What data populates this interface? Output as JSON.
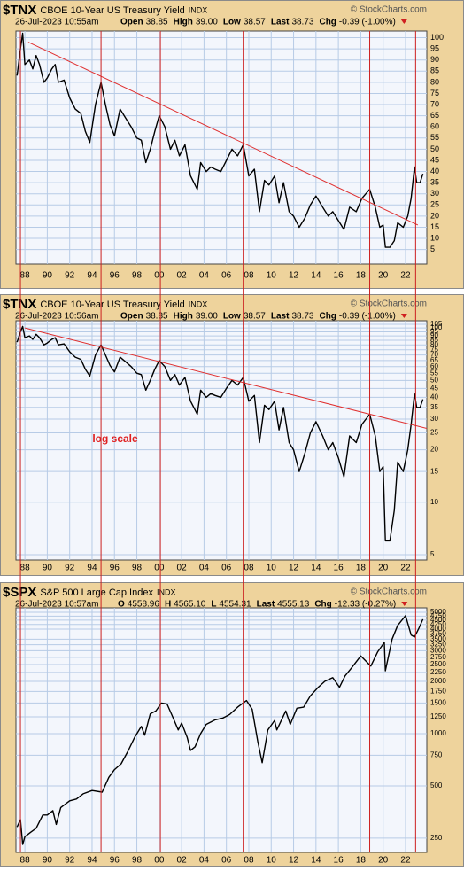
{
  "chart_data": [
    {
      "type": "line",
      "title": "$TNX",
      "subtitle": "CBOE 10-Year US Treasury Yield",
      "exchange": "INDX",
      "date": "26-Jul-2023 10:55am",
      "quote": [
        {
          "label": "Open",
          "value": "38.85"
        },
        {
          "label": "High",
          "value": "39.00"
        },
        {
          "label": "Low",
          "value": "38.57"
        },
        {
          "label": "Last",
          "value": "38.73"
        },
        {
          "label": "Chg",
          "value": "-0.39 (-1.00%)"
        }
      ],
      "watermark": "© StockCharts.com",
      "log_scale": false,
      "grid": true,
      "xlim": [
        1987.2,
        2023.9
      ],
      "ylim": [
        -1.5,
        103
      ],
      "xticks": [
        {
          "value": 1988,
          "label": "88"
        },
        {
          "value": 1990,
          "label": "90"
        },
        {
          "value": 1992,
          "label": "92"
        },
        {
          "value": 1994,
          "label": "94"
        },
        {
          "value": 1996,
          "label": "96"
        },
        {
          "value": 1998,
          "label": "98"
        },
        {
          "value": 2000,
          "label": "00"
        },
        {
          "value": 2002,
          "label": "02"
        },
        {
          "value": 2004,
          "label": "04"
        },
        {
          "value": 2006,
          "label": "06"
        },
        {
          "value": 2008,
          "label": "08"
        },
        {
          "value": 2010,
          "label": "10"
        },
        {
          "value": 2012,
          "label": "12"
        },
        {
          "value": 2014,
          "label": "14"
        },
        {
          "value": 2016,
          "label": "16"
        },
        {
          "value": 2018,
          "label": "18"
        },
        {
          "value": 2020,
          "label": "20"
        },
        {
          "value": 2022,
          "label": "22"
        }
      ],
      "yticks": [
        5,
        10,
        15,
        20,
        25,
        30,
        35,
        40,
        45,
        50,
        55,
        60,
        65,
        70,
        75,
        80,
        85,
        90,
        95,
        100
      ],
      "series": [
        {
          "color": "#000000",
          "x": [
            1987.3,
            1987.6,
            1987.8,
            1988.0,
            1988.4,
            1988.7,
            1989.0,
            1989.3,
            1989.7,
            1990.0,
            1990.4,
            1990.7,
            1991.0,
            1991.5,
            1992.0,
            1992.5,
            1993.0,
            1993.4,
            1993.8,
            1994.3,
            1994.8,
            1995.2,
            1995.6,
            1996.0,
            1996.5,
            1997.0,
            1997.5,
            1998.0,
            1998.4,
            1998.8,
            1999.2,
            1999.6,
            2000.0,
            2000.5,
            2001.0,
            2001.4,
            2001.8,
            2002.3,
            2002.8,
            2003.4,
            2003.7,
            2004.2,
            2004.6,
            2005.0,
            2005.5,
            2006.0,
            2006.5,
            2007.0,
            2007.5,
            2008.0,
            2008.5,
            2008.95,
            2009.4,
            2009.8,
            2010.3,
            2010.7,
            2011.1,
            2011.6,
            2012.0,
            2012.5,
            2013.0,
            2013.5,
            2014.0,
            2014.6,
            2015.1,
            2015.5,
            2016.0,
            2016.5,
            2017.0,
            2017.6,
            2018.1,
            2018.8,
            2019.3,
            2019.7,
            2020.0,
            2020.2,
            2020.6,
            2021.0,
            2021.3,
            2021.8,
            2022.2,
            2022.5,
            2022.8,
            2023.0,
            2023.3,
            2023.55
          ],
          "values": [
            83,
            95,
            102,
            88,
            90,
            86,
            92,
            88,
            80,
            82,
            86,
            88,
            80,
            81,
            73,
            68,
            66,
            58,
            53,
            70,
            80,
            70,
            61,
            56,
            68,
            64,
            60,
            55,
            54,
            44,
            50,
            58,
            65,
            60,
            50,
            54,
            47,
            52,
            38,
            32,
            44,
            40,
            42,
            41,
            40,
            45,
            50,
            47,
            52,
            38,
            41,
            22,
            36,
            34,
            38,
            26,
            35,
            22,
            20,
            15,
            19,
            25,
            29,
            24,
            20,
            22,
            18,
            14,
            24,
            22,
            28,
            32,
            24,
            15,
            16,
            6,
            6,
            9,
            17,
            15,
            20,
            28,
            42,
            35,
            35,
            39
          ]
        }
      ],
      "trendline": {
        "x": [
          1988.3,
          2023.1
        ],
        "y": [
          98,
          16
        ]
      }
    },
    {
      "type": "line",
      "title": "$TNX",
      "subtitle": "CBOE 10-Year US Treasury Yield",
      "exchange": "INDX",
      "date": "26-Jul-2023 10:56am",
      "quote": [
        {
          "label": "Open",
          "value": "38.85"
        },
        {
          "label": "High",
          "value": "39.00"
        },
        {
          "label": "Low",
          "value": "38.57"
        },
        {
          "label": "Last",
          "value": "38.73"
        },
        {
          "label": "Chg",
          "value": "-0.39 (-1.00%)"
        }
      ],
      "watermark": "© StockCharts.com",
      "log_scale": true,
      "grid": true,
      "annotation": "log scale",
      "xlim": [
        1987.2,
        2023.9
      ],
      "ylim": [
        4.66,
        110
      ],
      "xticks": [
        {
          "value": 1988,
          "label": "88"
        },
        {
          "value": 1990,
          "label": "90"
        },
        {
          "value": 1992,
          "label": "92"
        },
        {
          "value": 1994,
          "label": "94"
        },
        {
          "value": 1996,
          "label": "96"
        },
        {
          "value": 1998,
          "label": "98"
        },
        {
          "value": 2000,
          "label": "00"
        },
        {
          "value": 2002,
          "label": "02"
        },
        {
          "value": 2004,
          "label": "04"
        },
        {
          "value": 2006,
          "label": "06"
        },
        {
          "value": 2008,
          "label": "08"
        },
        {
          "value": 2010,
          "label": "10"
        },
        {
          "value": 2012,
          "label": "12"
        },
        {
          "value": 2014,
          "label": "14"
        },
        {
          "value": 2016,
          "label": "16"
        },
        {
          "value": 2018,
          "label": "18"
        },
        {
          "value": 2020,
          "label": "20"
        },
        {
          "value": 2022,
          "label": "22"
        }
      ],
      "yticks": [
        5,
        10,
        15,
        20,
        25,
        30,
        35,
        40,
        45,
        50,
        55,
        60,
        65,
        70,
        75,
        80,
        85,
        90,
        95,
        100,
        105
      ],
      "series": [
        {
          "color": "#000000",
          "x": [
            1987.3,
            1987.6,
            1987.8,
            1988.0,
            1988.4,
            1988.7,
            1989.0,
            1989.3,
            1989.7,
            1990.0,
            1990.4,
            1990.7,
            1991.0,
            1991.5,
            1992.0,
            1992.5,
            1993.0,
            1993.4,
            1993.8,
            1994.3,
            1994.8,
            1995.2,
            1995.6,
            1996.0,
            1996.5,
            1997.0,
            1997.5,
            1998.0,
            1998.4,
            1998.8,
            1999.2,
            1999.6,
            2000.0,
            2000.5,
            2001.0,
            2001.4,
            2001.8,
            2002.3,
            2002.8,
            2003.4,
            2003.7,
            2004.2,
            2004.6,
            2005.0,
            2005.5,
            2006.0,
            2006.5,
            2007.0,
            2007.5,
            2008.0,
            2008.5,
            2008.95,
            2009.4,
            2009.8,
            2010.3,
            2010.7,
            2011.1,
            2011.6,
            2012.0,
            2012.5,
            2013.0,
            2013.5,
            2014.0,
            2014.6,
            2015.1,
            2015.5,
            2016.0,
            2016.5,
            2017.0,
            2017.6,
            2018.1,
            2018.8,
            2019.3,
            2019.7,
            2020.0,
            2020.2,
            2020.6,
            2021.0,
            2021.3,
            2021.8,
            2022.2,
            2022.5,
            2022.8,
            2023.0,
            2023.3,
            2023.55
          ],
          "values": [
            83,
            95,
            102,
            88,
            90,
            86,
            92,
            88,
            80,
            82,
            86,
            88,
            80,
            81,
            73,
            68,
            66,
            58,
            53,
            70,
            80,
            70,
            61,
            56,
            68,
            64,
            60,
            55,
            54,
            44,
            50,
            58,
            65,
            60,
            50,
            54,
            47,
            52,
            38,
            32,
            44,
            40,
            42,
            41,
            40,
            45,
            50,
            47,
            52,
            38,
            41,
            22,
            36,
            34,
            38,
            26,
            35,
            22,
            20,
            15,
            19,
            25,
            29,
            24,
            20,
            22,
            18,
            14,
            24,
            22,
            28,
            32,
            24,
            15,
            16,
            6,
            6,
            9,
            17,
            15,
            20,
            28,
            42,
            35,
            35,
            39
          ]
        }
      ],
      "trendline": {
        "x": [
          1988.0,
          2023.9
        ],
        "y": [
          100,
          26.5
        ]
      }
    },
    {
      "type": "line",
      "title": "$SPX",
      "subtitle": "S&P 500 Large Cap Index",
      "exchange": "INDX",
      "date": "26-Jul-2023 10:57am",
      "quote": [
        {
          "label": "O",
          "value": "4558.96"
        },
        {
          "label": "H",
          "value": "4565.10"
        },
        {
          "label": "L",
          "value": "4554.31"
        },
        {
          "label": "Last",
          "value": "4555.13"
        },
        {
          "label": "Chg",
          "value": "-12.33 (-0.27%)"
        }
      ],
      "watermark": "© StockCharts.com",
      "log_scale": true,
      "grid": true,
      "xlim": [
        1987.2,
        2023.9
      ],
      "ylim": [
        207,
        5300
      ],
      "xticks": [
        {
          "value": 1988,
          "label": "88"
        },
        {
          "value": 1990,
          "label": "90"
        },
        {
          "value": 1992,
          "label": "92"
        },
        {
          "value": 1994,
          "label": "94"
        },
        {
          "value": 1996,
          "label": "96"
        },
        {
          "value": 1998,
          "label": "98"
        },
        {
          "value": 2000,
          "label": "00"
        },
        {
          "value": 2002,
          "label": "02"
        },
        {
          "value": 2004,
          "label": "04"
        },
        {
          "value": 2006,
          "label": "06"
        },
        {
          "value": 2008,
          "label": "08"
        },
        {
          "value": 2010,
          "label": "10"
        },
        {
          "value": 2012,
          "label": "12"
        },
        {
          "value": 2014,
          "label": "14"
        },
        {
          "value": 2016,
          "label": "16"
        },
        {
          "value": 2018,
          "label": "18"
        },
        {
          "value": 2020,
          "label": "20"
        },
        {
          "value": 2022,
          "label": "22"
        }
      ],
      "yticks": [
        250,
        500,
        750,
        1000,
        1250,
        1500,
        1750,
        2000,
        2250,
        2500,
        2750,
        3000,
        3250,
        3500,
        3750,
        4000,
        4250,
        4500,
        4750,
        5000
      ],
      "series": [
        {
          "color": "#000000",
          "x": [
            1987.3,
            1987.6,
            1987.8,
            1988.0,
            1988.5,
            1989.0,
            1989.6,
            1990.0,
            1990.5,
            1990.8,
            1991.2,
            1992.0,
            1992.6,
            1993.2,
            1994.0,
            1994.9,
            1995.5,
            1996.0,
            1996.6,
            1997.2,
            1997.8,
            1998.4,
            1998.7,
            1999.2,
            1999.7,
            2000.2,
            2000.7,
            2001.2,
            2001.7,
            2002.0,
            2002.5,
            2002.8,
            2003.2,
            2003.7,
            2004.2,
            2005.0,
            2005.7,
            2006.3,
            2007.0,
            2007.8,
            2008.3,
            2008.8,
            2009.2,
            2009.7,
            2010.3,
            2010.5,
            2011.3,
            2011.7,
            2012.3,
            2012.9,
            2013.5,
            2014.2,
            2014.8,
            2015.5,
            2016.1,
            2016.6,
            2017.2,
            2018.0,
            2018.9,
            2019.5,
            2020.1,
            2020.2,
            2020.8,
            2021.3,
            2022.0,
            2022.5,
            2022.8,
            2023.2,
            2023.55
          ],
          "values": [
            290,
            320,
            230,
            255,
            270,
            285,
            340,
            340,
            360,
            300,
            375,
            410,
            420,
            450,
            470,
            460,
            560,
            620,
            670,
            790,
            950,
            1100,
            980,
            1300,
            1350,
            1500,
            1480,
            1250,
            1050,
            1150,
            950,
            800,
            840,
            1000,
            1130,
            1200,
            1230,
            1290,
            1420,
            1550,
            1380,
            900,
            680,
            1050,
            1190,
            1050,
            1350,
            1130,
            1400,
            1420,
            1650,
            1850,
            2000,
            2100,
            1850,
            2150,
            2400,
            2800,
            2450,
            2950,
            3350,
            2300,
            3500,
            4200,
            4780,
            3700,
            3600,
            4050,
            4555
          ]
        }
      ]
    }
  ],
  "marker_lines_x": [
    1987.6,
    1994.8,
    2000.1,
    2007.5,
    2018.8,
    2022.9
  ]
}
